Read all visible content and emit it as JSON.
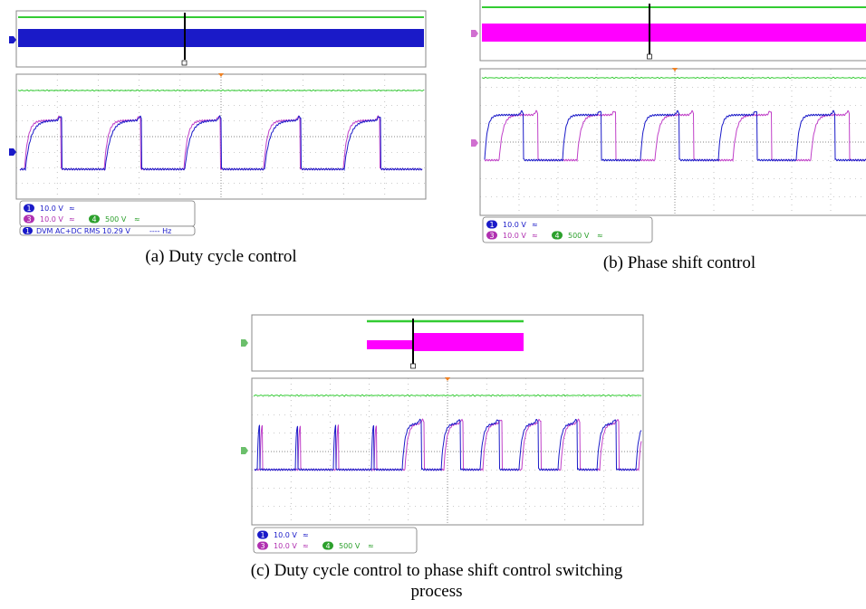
{
  "panels": [
    {
      "caption": [
        "(a) Duty cycle control"
      ],
      "legend": [
        {
          "channel": "1",
          "scale": "10.0 V"
        },
        {
          "channel": "3",
          "scale": "10.0 V"
        },
        {
          "channel": "4",
          "scale": "500 V"
        }
      ],
      "dvm": {
        "channel": "1",
        "text": "DVM AC+DC RMS 10.29 V",
        "freq": "---- Hz"
      }
    },
    {
      "caption": [
        "(b) Phase shift control"
      ],
      "legend": [
        {
          "channel": "1",
          "scale": "10.0 V"
        },
        {
          "channel": "3",
          "scale": "10.0 V"
        },
        {
          "channel": "4",
          "scale": "500 V"
        }
      ]
    },
    {
      "caption": [
        "(c) Duty cycle control to phase shift control switching",
        "process"
      ],
      "legend": [
        {
          "channel": "1",
          "scale": "10.0 V"
        },
        {
          "channel": "3",
          "scale": "10.0 V"
        },
        {
          "channel": "4",
          "scale": "500 V"
        }
      ]
    }
  ]
}
